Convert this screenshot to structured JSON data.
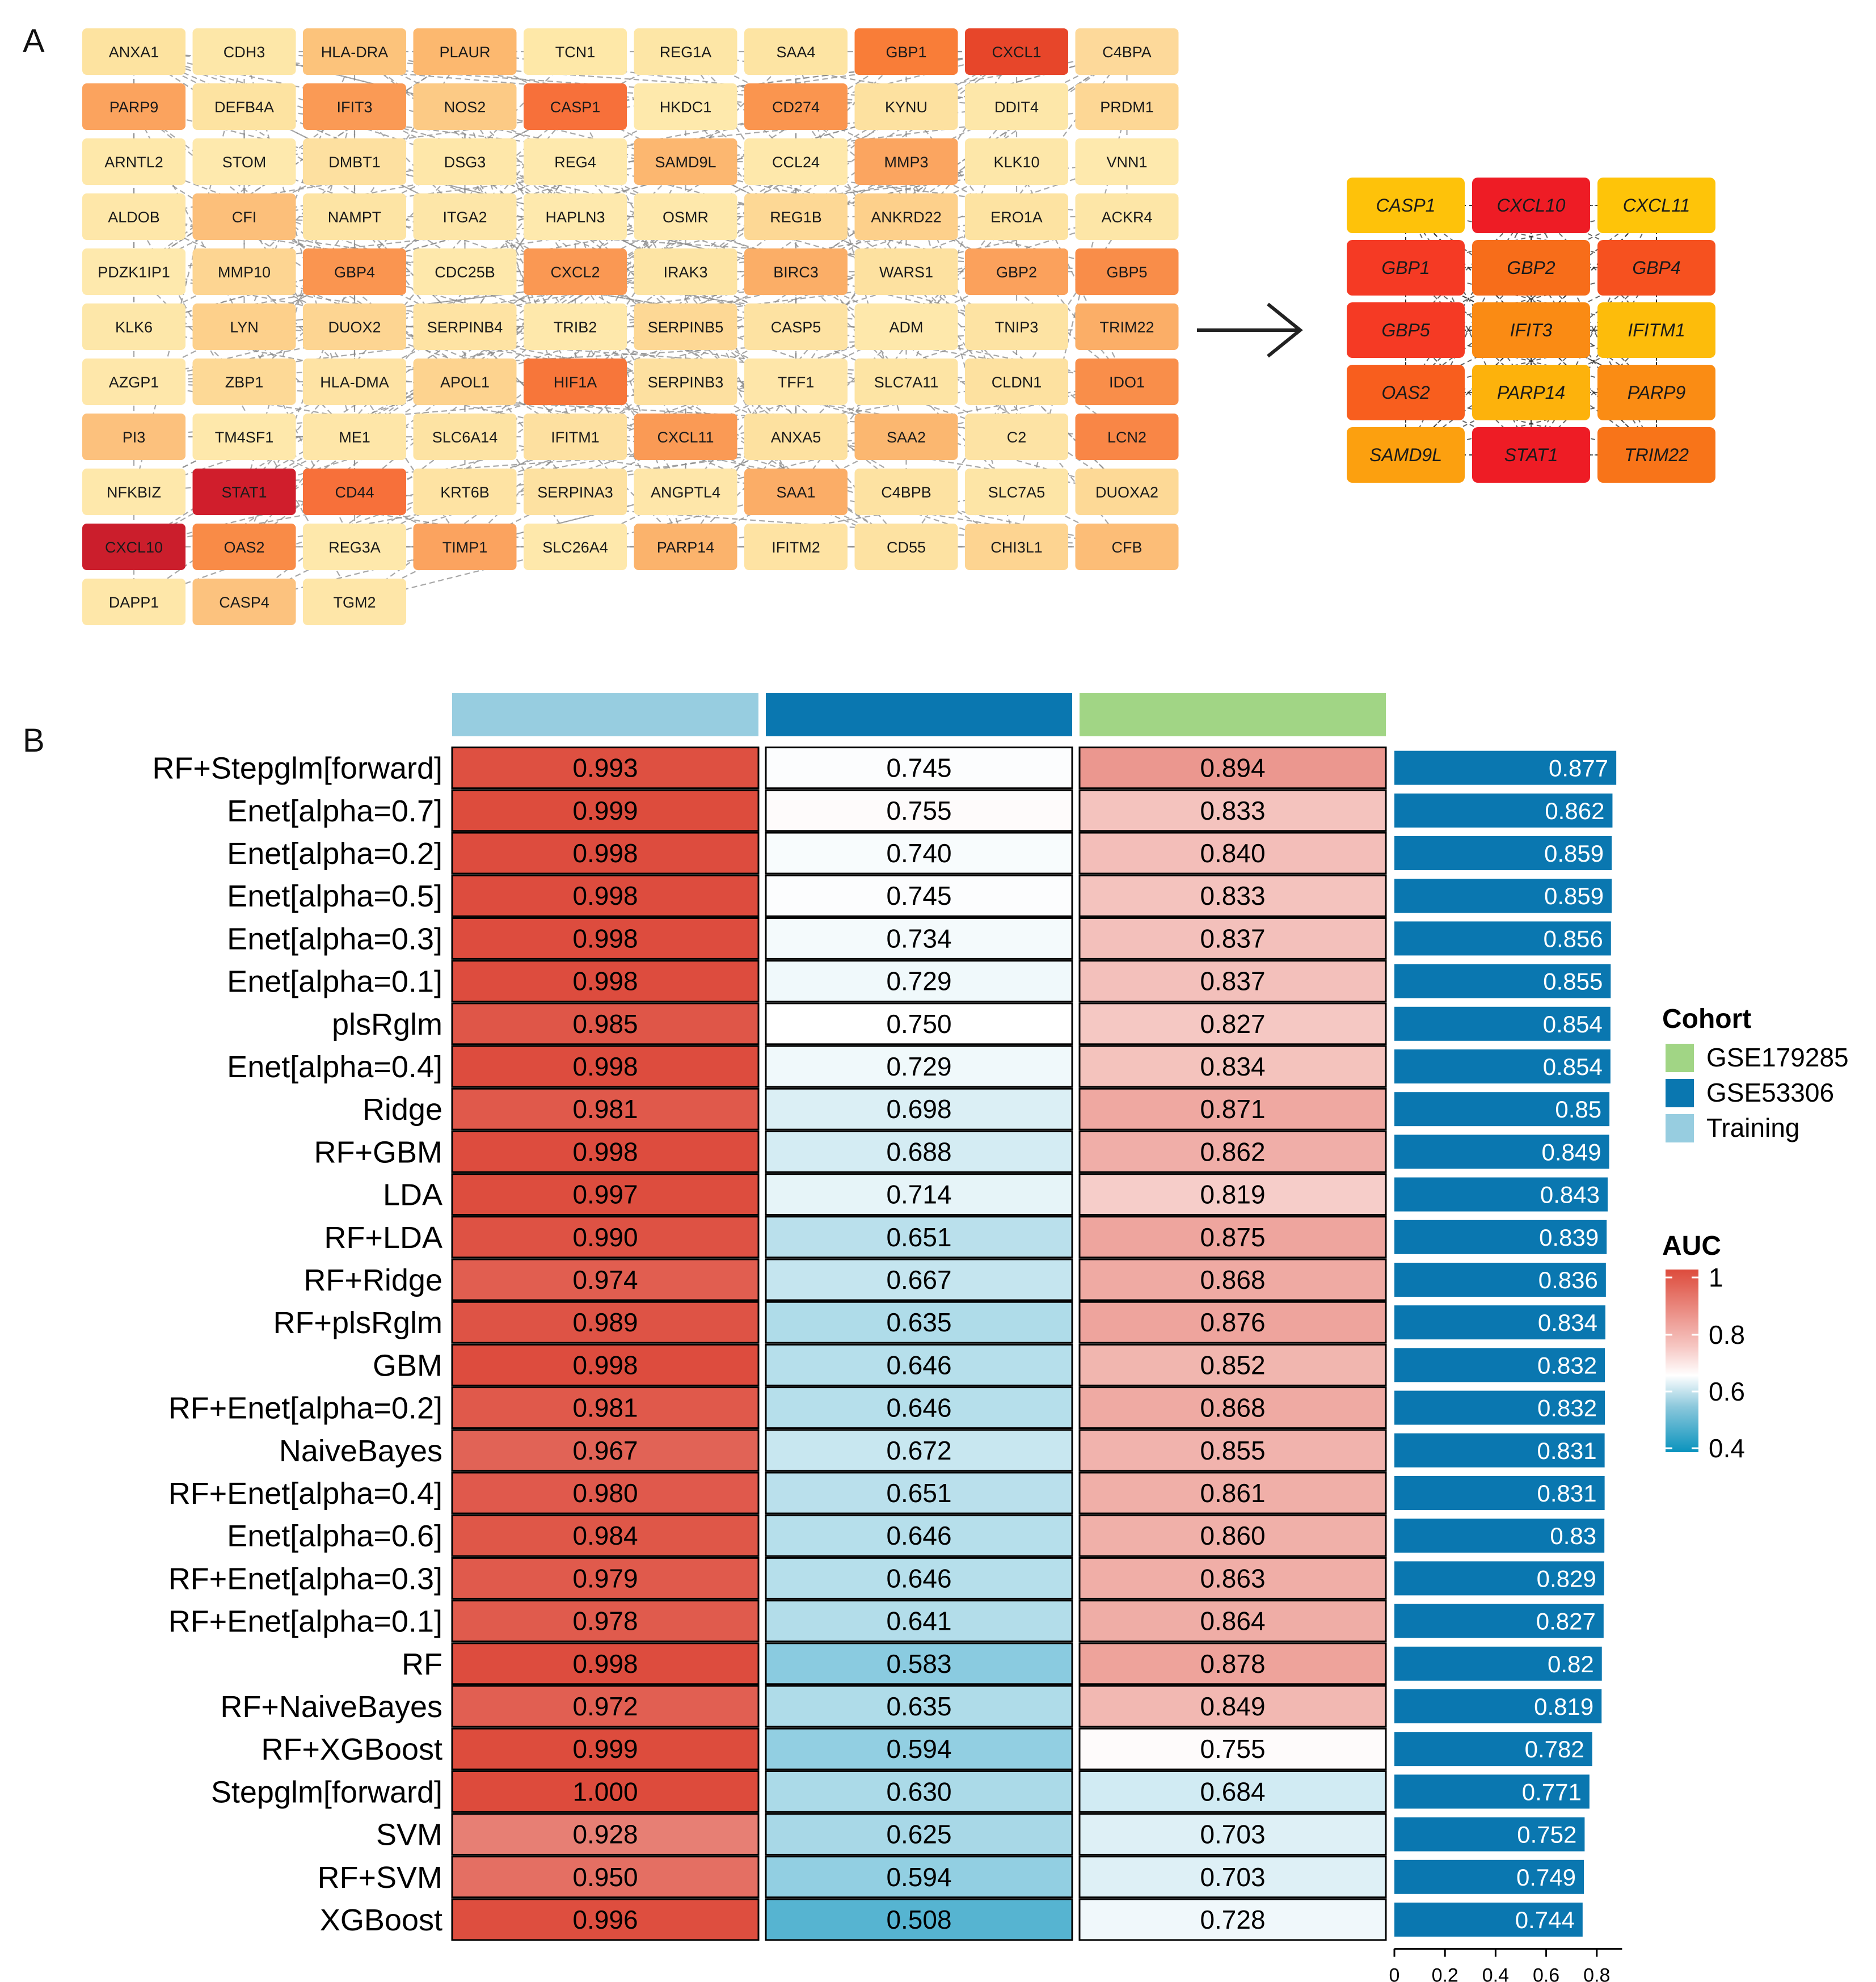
{
  "panel_a": {
    "label": "A",
    "network_nodes": [
      {
        "gene": "ANXA1",
        "color": "#fde3a0"
      },
      {
        "gene": "CDH3",
        "color": "#fde7a8"
      },
      {
        "gene": "HLA-DRA",
        "color": "#fcc37b"
      },
      {
        "gene": "PLAUR",
        "color": "#fcb86f"
      },
      {
        "gene": "TCN1",
        "color": "#fee8a8"
      },
      {
        "gene": "REG1A",
        "color": "#fde6a6"
      },
      {
        "gene": "SAA4",
        "color": "#fde4a3"
      },
      {
        "gene": "GBP1",
        "color": "#f97d38"
      },
      {
        "gene": "CXCL1",
        "color": "#e7462a"
      },
      {
        "gene": "C4BPA",
        "color": "#fdd99a"
      },
      {
        "gene": "PARP9",
        "color": "#fba35e"
      },
      {
        "gene": "DEFB4A",
        "color": "#fde3a1"
      },
      {
        "gene": "IFIT3",
        "color": "#fa9a55"
      },
      {
        "gene": "NOS2",
        "color": "#fcca85"
      },
      {
        "gene": "CASP1",
        "color": "#f7703a"
      },
      {
        "gene": "HKDC1",
        "color": "#fee9ac"
      },
      {
        "gene": "CD274",
        "color": "#fa954f"
      },
      {
        "gene": "KYNU",
        "color": "#fde1a0"
      },
      {
        "gene": "DDIT4",
        "color": "#fde7a9"
      },
      {
        "gene": "PRDM1",
        "color": "#fdd795"
      },
      {
        "gene": "ARNTL2",
        "color": "#fee8aa"
      },
      {
        "gene": "STOM",
        "color": "#fee9ad"
      },
      {
        "gene": "DMBT1",
        "color": "#fde0a0"
      },
      {
        "gene": "DSG3",
        "color": "#fee7a9"
      },
      {
        "gene": "REG4",
        "color": "#fee9ad"
      },
      {
        "gene": "SAMD9L",
        "color": "#fcb770"
      },
      {
        "gene": "CCL24",
        "color": "#fee8ab"
      },
      {
        "gene": "MMP3",
        "color": "#fba560"
      },
      {
        "gene": "KLK10",
        "color": "#fde7a9"
      },
      {
        "gene": "VNN1",
        "color": "#fee9ad"
      },
      {
        "gene": "ALDOB",
        "color": "#fee7a9"
      },
      {
        "gene": "CFI",
        "color": "#fcbf7a"
      },
      {
        "gene": "NAMPT",
        "color": "#fde4a4"
      },
      {
        "gene": "ITGA2",
        "color": "#fde6a8"
      },
      {
        "gene": "HAPLN3",
        "color": "#fee9ad"
      },
      {
        "gene": "OSMR",
        "color": "#fee8ab"
      },
      {
        "gene": "REG1B",
        "color": "#fdd895"
      },
      {
        "gene": "ANKRD22",
        "color": "#fdd08b"
      },
      {
        "gene": "ERO1A",
        "color": "#fde3a2"
      },
      {
        "gene": "ACKR4",
        "color": "#fde6a7"
      },
      {
        "gene": "PDZK1IP1",
        "color": "#fee9ad"
      },
      {
        "gene": "MMP10",
        "color": "#fdd592"
      },
      {
        "gene": "GBP4",
        "color": "#fa9550"
      },
      {
        "gene": "CDC25B",
        "color": "#fee8ab"
      },
      {
        "gene": "CXCL2",
        "color": "#fa9853"
      },
      {
        "gene": "IRAK3",
        "color": "#fde4a4"
      },
      {
        "gene": "BIRC3",
        "color": "#fbae67"
      },
      {
        "gene": "WARS1",
        "color": "#fde1a0"
      },
      {
        "gene": "GBP2",
        "color": "#fba15c"
      },
      {
        "gene": "GBP5",
        "color": "#f98d49"
      },
      {
        "gene": "KLK6",
        "color": "#fde7a9"
      },
      {
        "gene": "LYN",
        "color": "#fdd08b"
      },
      {
        "gene": "DUOX2",
        "color": "#fdd592"
      },
      {
        "gene": "SERPINB4",
        "color": "#fee3a3"
      },
      {
        "gene": "TRIB2",
        "color": "#fee8ab"
      },
      {
        "gene": "SERPINB5",
        "color": "#fdd895"
      },
      {
        "gene": "CASP5",
        "color": "#fde2a2"
      },
      {
        "gene": "ADM",
        "color": "#fee8ab"
      },
      {
        "gene": "TNIP3",
        "color": "#fde3a3"
      },
      {
        "gene": "TRIM22",
        "color": "#fbae67"
      },
      {
        "gene": "AZGP1",
        "color": "#fee7aa"
      },
      {
        "gene": "ZBP1",
        "color": "#fdd996"
      },
      {
        "gene": "HLA-DMA",
        "color": "#fee3a4"
      },
      {
        "gene": "APOL1",
        "color": "#fdd38f"
      },
      {
        "gene": "HIF1A",
        "color": "#f7763a"
      },
      {
        "gene": "SERPINB3",
        "color": "#fde0a0"
      },
      {
        "gene": "TFF1",
        "color": "#fee6a9"
      },
      {
        "gene": "SLC7A11",
        "color": "#fde4a4"
      },
      {
        "gene": "CLDN1",
        "color": "#fde1a0"
      },
      {
        "gene": "IDO1",
        "color": "#f98e4a"
      },
      {
        "gene": "PI3",
        "color": "#fcc17d"
      },
      {
        "gene": "TM4SF1",
        "color": "#fee8ab"
      },
      {
        "gene": "ME1",
        "color": "#fee6a8"
      },
      {
        "gene": "SLC6A14",
        "color": "#fde3a3"
      },
      {
        "gene": "IFITM1",
        "color": "#fde0a0"
      },
      {
        "gene": "CXCL11",
        "color": "#fa9a55"
      },
      {
        "gene": "ANXA5",
        "color": "#fde1a0"
      },
      {
        "gene": "SAA2",
        "color": "#fbb770"
      },
      {
        "gene": "C2",
        "color": "#fde3a4"
      },
      {
        "gene": "LCN2",
        "color": "#f98646"
      },
      {
        "gene": "NFKBIZ",
        "color": "#fee8ab"
      },
      {
        "gene": "STAT1",
        "color": "#d01e2c"
      },
      {
        "gene": "CD44",
        "color": "#f7703a"
      },
      {
        "gene": "KRT6B",
        "color": "#fee3a3"
      },
      {
        "gene": "SERPINA3",
        "color": "#fde1a1"
      },
      {
        "gene": "ANGPTL4",
        "color": "#fee6a9"
      },
      {
        "gene": "SAA1",
        "color": "#fbad67"
      },
      {
        "gene": "C4BPB",
        "color": "#fde2a2"
      },
      {
        "gene": "SLC7A5",
        "color": "#fde5a6"
      },
      {
        "gene": "DUOXA2",
        "color": "#fdd996"
      },
      {
        "gene": "CXCL10",
        "color": "#cb1e2c"
      },
      {
        "gene": "OAS2",
        "color": "#f98b47"
      },
      {
        "gene": "REG3A",
        "color": "#fee8ab"
      },
      {
        "gene": "TIMP1",
        "color": "#fba35f"
      },
      {
        "gene": "SLC26A4",
        "color": "#fee8ab"
      },
      {
        "gene": "PARP14",
        "color": "#fbb36c"
      },
      {
        "gene": "IFITM2",
        "color": "#fee3a3"
      },
      {
        "gene": "CD55",
        "color": "#fde2a2"
      },
      {
        "gene": "CHI3L1",
        "color": "#fdd491"
      },
      {
        "gene": "CFB",
        "color": "#fcbd77"
      },
      {
        "gene": "DAPP1",
        "color": "#fee7a9"
      },
      {
        "gene": "CASP4",
        "color": "#fcc27e"
      },
      {
        "gene": "TGM2",
        "color": "#fee6a8"
      }
    ],
    "hub_genes": [
      {
        "gene": "CASP1",
        "color": "#fec20a"
      },
      {
        "gene": "CXCL10",
        "color": "#ee1c25"
      },
      {
        "gene": "CXCL11",
        "color": "#fec409"
      },
      {
        "gene": "GBP1",
        "color": "#f53a24"
      },
      {
        "gene": "GBP2",
        "color": "#f76d1a"
      },
      {
        "gene": "GBP4",
        "color": "#f6511f"
      },
      {
        "gene": "GBP5",
        "color": "#f53a24"
      },
      {
        "gene": "IFIT3",
        "color": "#fa8b14"
      },
      {
        "gene": "IFITM1",
        "color": "#fdbc0b"
      },
      {
        "gene": "OAS2",
        "color": "#f85e1e"
      },
      {
        "gene": "PARP14",
        "color": "#fdb20c"
      },
      {
        "gene": "PARP9",
        "color": "#fa8c14"
      },
      {
        "gene": "SAMD9L",
        "color": "#fca00f"
      },
      {
        "gene": "STAT1",
        "color": "#ee1c25"
      },
      {
        "gene": "TRIM22",
        "color": "#f87419"
      }
    ]
  },
  "panel_b": {
    "label": "B",
    "legend": {
      "cohort_title": "Cohort",
      "cohorts": [
        {
          "name": "GSE179285",
          "color": "#a1d585"
        },
        {
          "name": "GSE53306",
          "color": "#0a77b0"
        },
        {
          "name": "Training",
          "color": "#97cde0"
        }
      ],
      "auc_title": "AUC",
      "auc_ticks": [
        "1",
        "0.8",
        "0.6",
        "0.4"
      ]
    }
  },
  "chart_data": {
    "type": "heatmap",
    "title": "",
    "columns": [
      "Training",
      "GSE53306",
      "GSE179285"
    ],
    "column_colors": [
      "#97cde0",
      "#0a77b0",
      "#a1d585"
    ],
    "color_scale": {
      "min": 0.4,
      "mid": 0.75,
      "max": 1.0,
      "low_color": "#0a93bd",
      "mid_color": "#ffffff",
      "high_color": "#dd4b3c"
    },
    "rows": [
      {
        "model": "RF+Stepglm[forward]",
        "values": [
          "0.993",
          "0.745",
          "0.894"
        ],
        "mean": "0.877"
      },
      {
        "model": "Enet[alpha=0.7]",
        "values": [
          "0.999",
          "0.755",
          "0.833"
        ],
        "mean": "0.862"
      },
      {
        "model": "Enet[alpha=0.2]",
        "values": [
          "0.998",
          "0.740",
          "0.840"
        ],
        "mean": "0.859"
      },
      {
        "model": "Enet[alpha=0.5]",
        "values": [
          "0.998",
          "0.745",
          "0.833"
        ],
        "mean": "0.859"
      },
      {
        "model": "Enet[alpha=0.3]",
        "values": [
          "0.998",
          "0.734",
          "0.837"
        ],
        "mean": "0.856"
      },
      {
        "model": "Enet[alpha=0.1]",
        "values": [
          "0.998",
          "0.729",
          "0.837"
        ],
        "mean": "0.855"
      },
      {
        "model": "plsRglm",
        "values": [
          "0.985",
          "0.750",
          "0.827"
        ],
        "mean": "0.854"
      },
      {
        "model": "Enet[alpha=0.4]",
        "values": [
          "0.998",
          "0.729",
          "0.834"
        ],
        "mean": "0.854"
      },
      {
        "model": "Ridge",
        "values": [
          "0.981",
          "0.698",
          "0.871"
        ],
        "mean": "0.85"
      },
      {
        "model": "RF+GBM",
        "values": [
          "0.998",
          "0.688",
          "0.862"
        ],
        "mean": "0.849"
      },
      {
        "model": "LDA",
        "values": [
          "0.997",
          "0.714",
          "0.819"
        ],
        "mean": "0.843"
      },
      {
        "model": "RF+LDA",
        "values": [
          "0.990",
          "0.651",
          "0.875"
        ],
        "mean": "0.839"
      },
      {
        "model": "RF+Ridge",
        "values": [
          "0.974",
          "0.667",
          "0.868"
        ],
        "mean": "0.836"
      },
      {
        "model": "RF+plsRglm",
        "values": [
          "0.989",
          "0.635",
          "0.876"
        ],
        "mean": "0.834"
      },
      {
        "model": "GBM",
        "values": [
          "0.998",
          "0.646",
          "0.852"
        ],
        "mean": "0.832"
      },
      {
        "model": "RF+Enet[alpha=0.2]",
        "values": [
          "0.981",
          "0.646",
          "0.868"
        ],
        "mean": "0.832"
      },
      {
        "model": "NaiveBayes",
        "values": [
          "0.967",
          "0.672",
          "0.855"
        ],
        "mean": "0.831"
      },
      {
        "model": "RF+Enet[alpha=0.4]",
        "values": [
          "0.980",
          "0.651",
          "0.861"
        ],
        "mean": "0.831"
      },
      {
        "model": "Enet[alpha=0.6]",
        "values": [
          "0.984",
          "0.646",
          "0.860"
        ],
        "mean": "0.83"
      },
      {
        "model": "RF+Enet[alpha=0.3]",
        "values": [
          "0.979",
          "0.646",
          "0.863"
        ],
        "mean": "0.829"
      },
      {
        "model": "RF+Enet[alpha=0.1]",
        "values": [
          "0.978",
          "0.641",
          "0.864"
        ],
        "mean": "0.827"
      },
      {
        "model": "RF",
        "values": [
          "0.998",
          "0.583",
          "0.878"
        ],
        "mean": "0.82"
      },
      {
        "model": "RF+NaiveBayes",
        "values": [
          "0.972",
          "0.635",
          "0.849"
        ],
        "mean": "0.819"
      },
      {
        "model": "RF+XGBoost",
        "values": [
          "0.999",
          "0.594",
          "0.755"
        ],
        "mean": "0.782"
      },
      {
        "model": "Stepglm[forward]",
        "values": [
          "1.000",
          "0.630",
          "0.684"
        ],
        "mean": "0.771"
      },
      {
        "model": "SVM",
        "values": [
          "0.928",
          "0.625",
          "0.703"
        ],
        "mean": "0.752"
      },
      {
        "model": "RF+SVM",
        "values": [
          "0.950",
          "0.594",
          "0.703"
        ],
        "mean": "0.749"
      },
      {
        "model": "XGBoost",
        "values": [
          "0.996",
          "0.508",
          "0.728"
        ],
        "mean": "0.744"
      }
    ],
    "bar": {
      "type": "bar",
      "color": "#0a77b0",
      "xlim": [
        0,
        0.9
      ],
      "ticks": [
        "0",
        "0.2",
        "0.4",
        "0.6",
        "0.8"
      ]
    }
  }
}
